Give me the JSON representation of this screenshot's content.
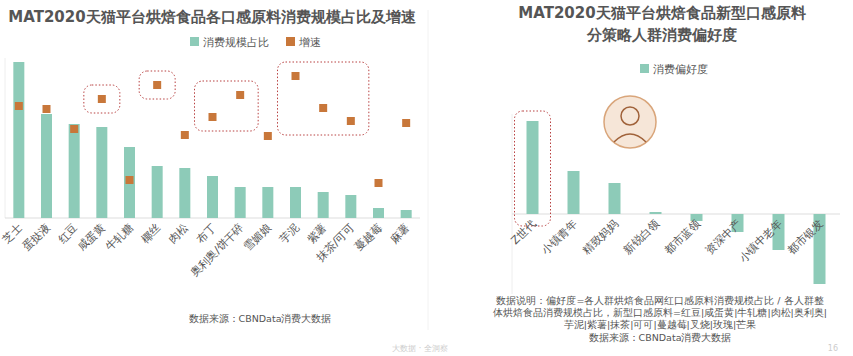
{
  "chart_data": [
    {
      "type": "bar",
      "title": "MAT2020天猫平台烘焙食品各口感原料消费规模占比及增速",
      "categories": [
        "芝士",
        "蛋挞液",
        "红豆",
        "咸蛋黄",
        "牛轧糖",
        "椰丝",
        "肉松",
        "布丁",
        "奥利奥/饼干碎",
        "雪媚娘",
        "芋泥",
        "紫薯",
        "抹茶/可可",
        "蔓越莓",
        "麻薯"
      ],
      "series": [
        {
          "name": "消费规模占比",
          "type": "bar",
          "color": "#8dcbb8",
          "values": [
            156,
            104,
            94,
            91,
            71,
            52,
            50,
            42,
            31,
            31,
            31,
            26,
            23,
            10,
            8
          ]
        },
        {
          "name": "增速",
          "type": "scatter",
          "marker": "square",
          "color": "#c8773a",
          "values": [
            112,
            109,
            89,
            119,
            38,
            133,
            83,
            101,
            123,
            82,
            142,
            110,
            97,
            35,
            95
          ]
        }
      ],
      "ylim": [
        0,
        160
      ],
      "tick_labels": "x",
      "grid": false,
      "legend": "top",
      "source": "数据来源：CBNData消费大数据"
    },
    {
      "type": "bar",
      "title": [
        "MAT2020天猫平台烘焙食品新型口感原料",
        "分策略人群消费偏好度"
      ],
      "categories": [
        "Z世代",
        "小镇青年",
        "精致妈妈",
        "新锐白领",
        "都市蓝领",
        "资深中产",
        "小镇中老年",
        "都市银发"
      ],
      "series": [
        {
          "name": "消费偏好度",
          "type": "bar",
          "color": "#8dcbb8",
          "values": [
            93,
            43,
            31,
            2,
            -7,
            -18,
            -36,
            -70
          ]
        }
      ],
      "ylim": [
        -80,
        100
      ],
      "tick_labels": "x",
      "grid": false,
      "legend": "top",
      "note": [
        "数据说明：偏好度=各人群烘焙食品网红口感原料消费规模占比 / 各人群整",
        "体烘焙食品消费规模占比，新型口感原料=红豆|咸蛋黄|牛轧糖|肉松|奥利奥|",
        "芋泥|紫薯|抹茶|可可|蔓越莓|叉烧|玫瑰|芒果"
      ],
      "source": "数据来源：CBNData消费大数据"
    }
  ],
  "footer": {
    "text": "大数据 · 全洞察",
    "page": "16"
  }
}
